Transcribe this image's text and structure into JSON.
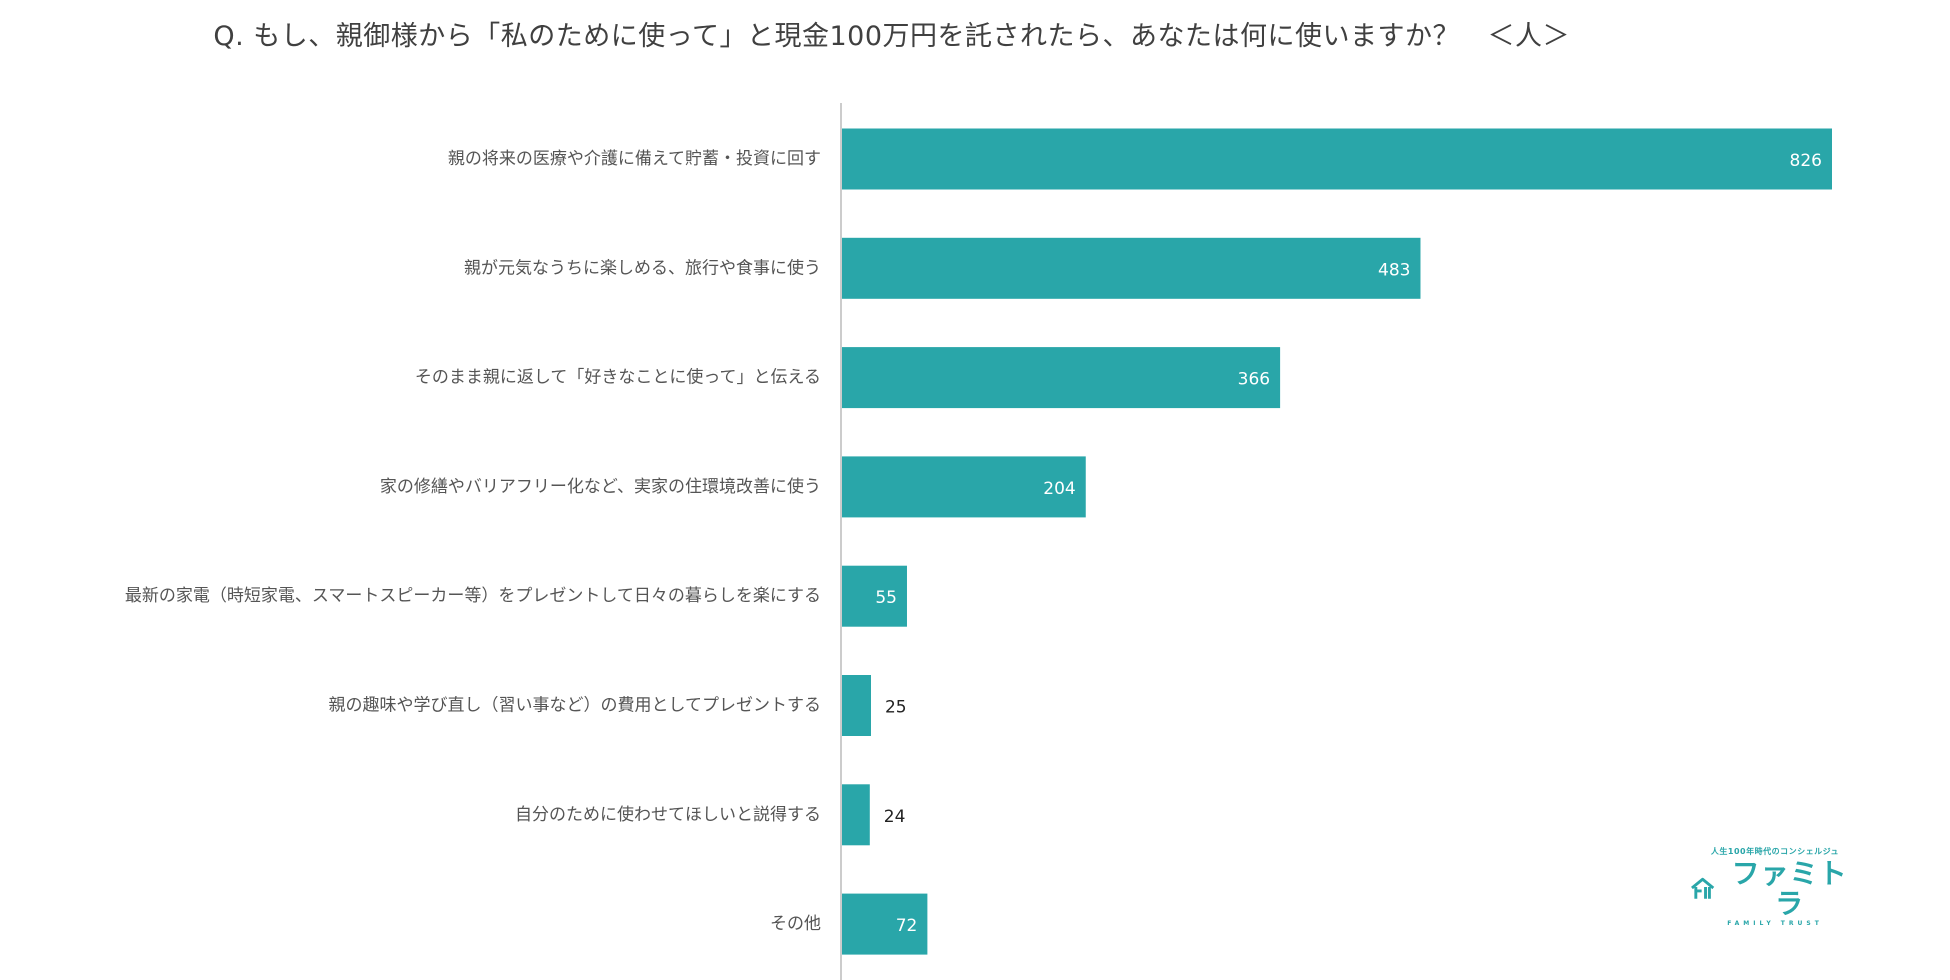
{
  "chart_data": {
    "type": "bar",
    "orientation": "horizontal",
    "title": "Q. もし、親御様から「私のために使って」と現金100万円を託されたら、あなたは何に使いますか？　＜人＞",
    "categories": [
      "親の将来の医療や介護に備えて貯蓄・投資に回す",
      "親が元気なうちに楽しめる、旅行や食事に使う",
      "そのまま親に返して「好きなことに使って」と伝える",
      "家の修繕やバリアフリー化など、実家の住環境改善に使う",
      "最新の家電（時短家電、スマートスピーカー等）をプレゼントして日々の暮らしを楽にする",
      "親の趣味や学び直し（習い事など）の費用としてプレゼントする",
      "自分のために使わせてほしいと説得する",
      "その他"
    ],
    "values": [
      826,
      483,
      366,
      204,
      55,
      25,
      24,
      72
    ],
    "xlim": [
      0,
      826
    ],
    "grid": false,
    "legend": "none",
    "bar_color": "#29a6a9",
    "label_inside_color": "#ffffff",
    "label_outside_color": "#222222"
  },
  "brand": {
    "tagline": "人生100年時代のコンシェルジュ",
    "name": "ファミトラ",
    "sub": "FAMILY TRUST",
    "icon": "house-logo-icon",
    "color": "#29a6a9"
  }
}
